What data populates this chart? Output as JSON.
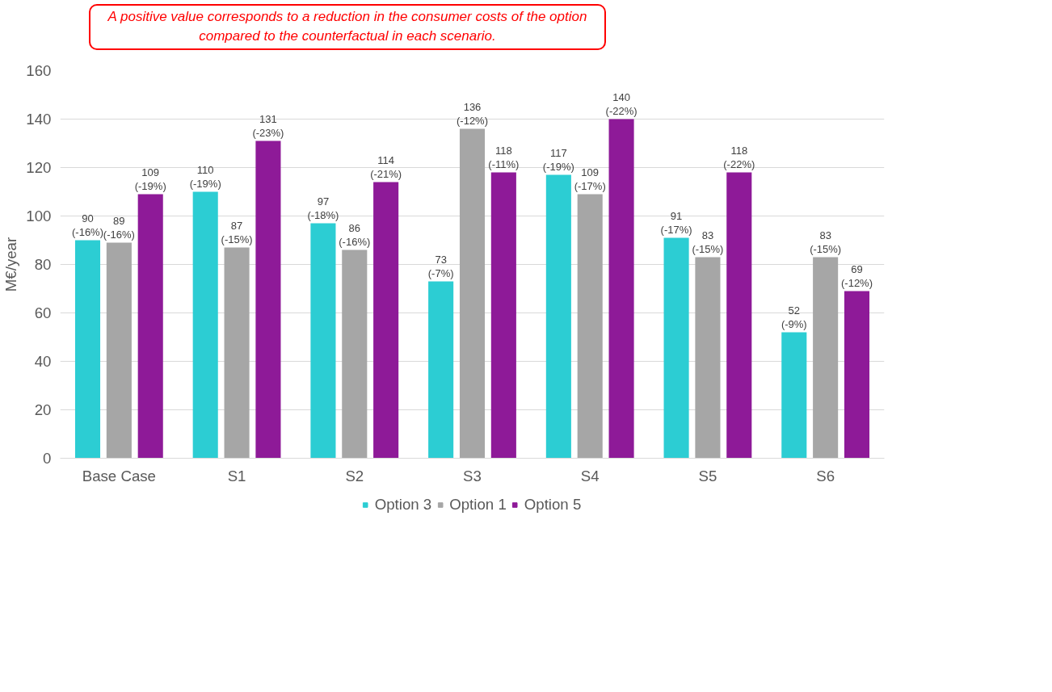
{
  "chart_data": {
    "type": "bar",
    "ylabel": "M€/year",
    "categories": [
      "Base Case",
      "S1",
      "S2",
      "S3",
      "S4",
      "S5",
      "S6"
    ],
    "series": [
      {
        "name": "Option 3",
        "color": "#2ccdd3",
        "values": [
          90,
          110,
          97,
          73,
          117,
          91,
          52
        ],
        "value_labels": [
          "90 (-16%)",
          "110 (-19%)",
          "97 (-18%)",
          "73 (-7%)",
          "117 (-19%)",
          "91 (-17%)",
          "52 (-9%)"
        ]
      },
      {
        "name": "Option 1",
        "color": "#a6a6a6",
        "values": [
          89,
          87,
          86,
          136,
          109,
          83,
          83
        ],
        "value_labels": [
          "89 (-16%)",
          "87 (-15%)",
          "86 (-16%)",
          "136 (-12%)",
          "109 (-17%)",
          "83 (-15%)",
          "83 (-15%)"
        ]
      },
      {
        "name": "Option 5",
        "color": "#8e1a98",
        "values": [
          109,
          131,
          114,
          118,
          140,
          118,
          69
        ],
        "value_labels": [
          "109 (-19%)",
          "131 (-23%)",
          "114 (-21%)",
          "118 (-11%)",
          "140 (-22%)",
          "118 (-22%)",
          "69 (-12%)"
        ]
      }
    ],
    "ylim": [
      0,
      160
    ],
    "yticks": [
      0,
      20,
      40,
      60,
      80,
      100,
      120,
      140,
      160
    ],
    "grid": "y",
    "legend": "bottom",
    "annotations": [
      "A positive value corresponds to a reduction in the consumer costs of the option compared to the counterfactual in each scenario."
    ]
  }
}
